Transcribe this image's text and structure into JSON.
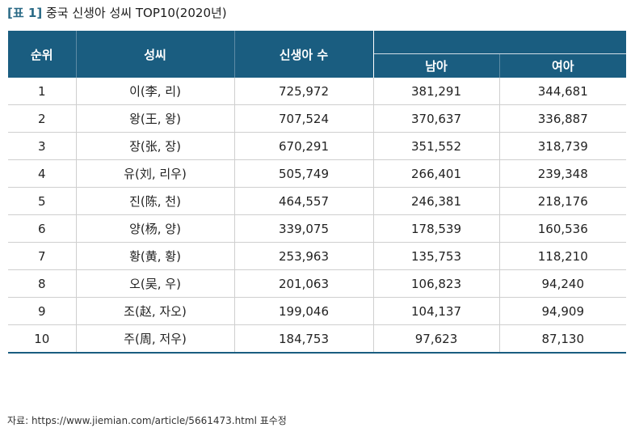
{
  "title": {
    "prefix": "[표 1]",
    "text": "중국 신생아 성씨 TOP10(2020년)"
  },
  "table": {
    "headers": {
      "rank": "순위",
      "surname": "성씨",
      "newborns": "신생아 수",
      "male": "남아",
      "female": "여아"
    },
    "rows": [
      {
        "rank": "1",
        "surname": "이(李, 리)",
        "total": "725,972",
        "male": "381,291",
        "female": "344,681"
      },
      {
        "rank": "2",
        "surname": "왕(王, 왕)",
        "total": "707,524",
        "male": "370,637",
        "female": "336,887"
      },
      {
        "rank": "3",
        "surname": "장(张, 장)",
        "total": "670,291",
        "male": "351,552",
        "female": "318,739"
      },
      {
        "rank": "4",
        "surname": "유(刘, 리우)",
        "total": "505,749",
        "male": "266,401",
        "female": "239,348"
      },
      {
        "rank": "5",
        "surname": "진(陈, 천)",
        "total": "464,557",
        "male": "246,381",
        "female": "218,176"
      },
      {
        "rank": "6",
        "surname": "양(杨, 양)",
        "total": "339,075",
        "male": "178,539",
        "female": "160,536"
      },
      {
        "rank": "7",
        "surname": "황(黄, 황)",
        "total": "253,963",
        "male": "135,753",
        "female": "118,210"
      },
      {
        "rank": "8",
        "surname": "오(吴, 우)",
        "total": "201,063",
        "male": "106,823",
        "female": "94,240"
      },
      {
        "rank": "9",
        "surname": "조(赵, 자오)",
        "total": "199,046",
        "male": "104,137",
        "female": "94,909"
      },
      {
        "rank": "10",
        "surname": "주(周, 저우)",
        "total": "184,753",
        "male": "97,623",
        "female": "87,130"
      }
    ]
  },
  "source": "자료: https://www.jiemian.com/article/5661473.html 표수정",
  "colors": {
    "header_bg": "#1a5d80",
    "title_prefix": "#2a6a86"
  }
}
